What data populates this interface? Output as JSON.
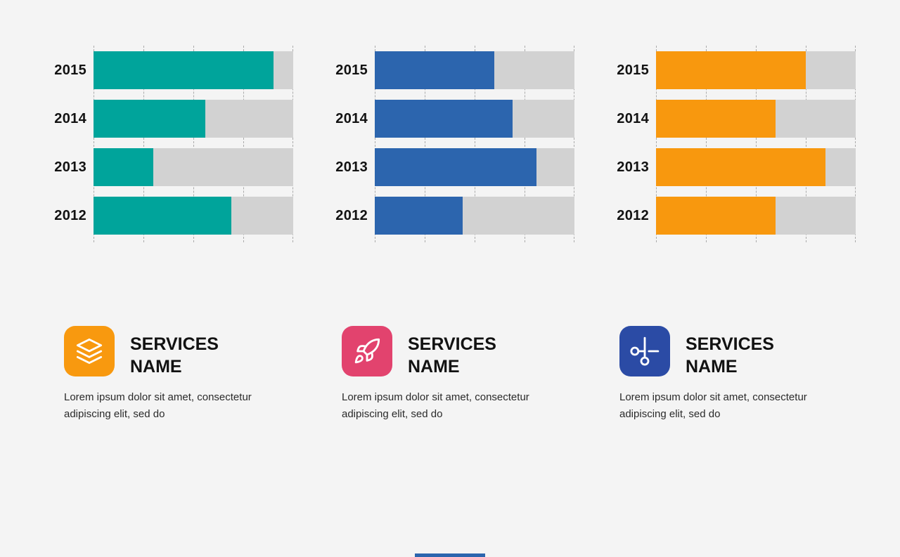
{
  "page": {
    "background": "#f4f4f4"
  },
  "chart_data": [
    {
      "type": "bar",
      "orientation": "horizontal",
      "title": "",
      "categories": [
        "2015",
        "2014",
        "2013",
        "2012"
      ],
      "values": [
        90,
        56,
        30,
        69
      ],
      "unit": "percent",
      "xlim": [
        0,
        100
      ],
      "grid": true,
      "gridline_step": 25,
      "bar_color": "#00a49b",
      "track_color": "#d2d2d2"
    },
    {
      "type": "bar",
      "orientation": "horizontal",
      "title": "",
      "categories": [
        "2015",
        "2014",
        "2013",
        "2012"
      ],
      "values": [
        60,
        69,
        81,
        44
      ],
      "unit": "percent",
      "xlim": [
        0,
        100
      ],
      "grid": true,
      "gridline_step": 25,
      "bar_color": "#2c65ae",
      "track_color": "#d2d2d2"
    },
    {
      "type": "bar",
      "orientation": "horizontal",
      "title": "",
      "categories": [
        "2015",
        "2014",
        "2013",
        "2012"
      ],
      "values": [
        75,
        60,
        85,
        60
      ],
      "unit": "percent",
      "xlim": [
        0,
        100
      ],
      "grid": true,
      "gridline_step": 25,
      "bar_color": "#f8980e",
      "track_color": "#d2d2d2"
    }
  ],
  "cards": [
    {
      "icon": "layers-icon",
      "icon_bg": "#f8990f",
      "title": "SERVICES NAME",
      "body": "Lorem ipsum dolor sit amet, consectetur adipiscing elit, sed do"
    },
    {
      "icon": "rocket-icon",
      "icon_bg": "#e2436e",
      "title": "SERVICES NAME",
      "body": "Lorem ipsum dolor sit amet, consectetur adipiscing elit, sed do"
    },
    {
      "icon": "scissors-icon",
      "icon_bg": "#2b4ba5",
      "title": "SERVICES NAME",
      "body": "Lorem ipsum dolor sit amet, consectetur adipiscing elit, sed do"
    }
  ],
  "footer": {
    "accent_color": "#2c65ae"
  }
}
